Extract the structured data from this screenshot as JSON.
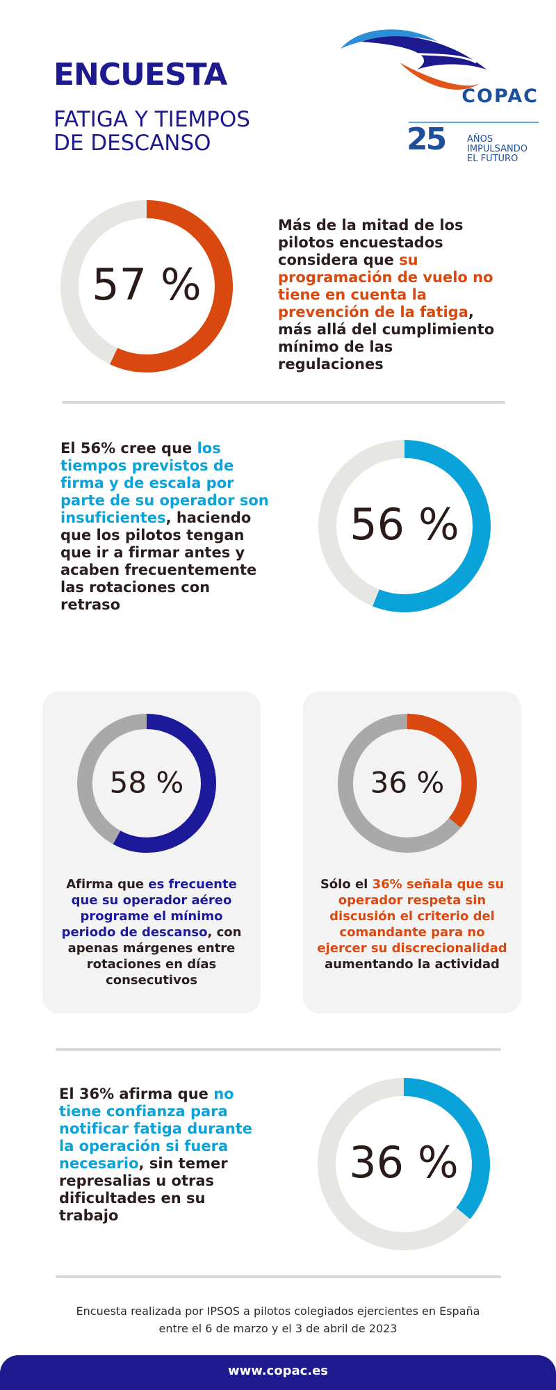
{
  "header": {
    "title": "ENCUESTA",
    "subtitle": [
      "FATIGA Y TIEMPOS",
      "DE DESCANSO"
    ],
    "logo": {
      "name": "COPAC",
      "years": "25",
      "tagline": [
        "AÑOS",
        "IMPULSANDO",
        "EL FUTURO"
      ]
    }
  },
  "stats": [
    {
      "value": 57,
      "label": "57 %",
      "color": "#d9480f",
      "track": "#e6e6e3",
      "text": [
        "Más de la mitad de los pilotos encuestados considera que ",
        "su programación de vuelo no tiene en cuenta la prevención de la fatiga",
        ", más allá del cumplimiento mínimo de las regulaciones"
      ]
    },
    {
      "value": 56,
      "label": "56 %",
      "color": "#0aa3d9",
      "track": "#e6e6e3",
      "text": [
        "El 56% cree que ",
        "los tiempos previstos de firma y de escala por parte de su operador son insuficientes",
        ", haciendo que los pilotos tengan que ir a firmar antes y acaben frecuentemente las rotaciones con retraso"
      ]
    },
    {
      "value": 58,
      "label": "58 %",
      "color": "#1c1a9a",
      "track": "#a9a9a9",
      "text": [
        "Afirma que ",
        "es frecuente que su operador aéreo programe el mínimo periodo de descanso",
        ", con apenas márgenes entre rotaciones en días consecutivos"
      ]
    },
    {
      "value": 36,
      "label": "36 %",
      "color": "#d9480f",
      "track": "#a9a9a9",
      "text": [
        "Sólo el ",
        "36% señala que su operador respeta sin discusión el criterio del comandante para no ejercer su discrecionalidad",
        " aumentando la actividad"
      ]
    },
    {
      "value": 36,
      "label": "36 %",
      "color": "#0aa3d9",
      "track": "#e6e6e3",
      "text": [
        "El 36% afirma que ",
        "no tiene confianza  para notificar fatiga durante la operación si fuera necesario",
        ", sin temer represalias u otras dificultades en su trabajo"
      ]
    }
  ],
  "footer": {
    "note": [
      "Encuesta realizada por IPSOS a pilotos colegiados ejercientes en España",
      "entre el 6 de marzo y el 3 de abril de 2023"
    ],
    "url": "www.copac.es"
  }
}
